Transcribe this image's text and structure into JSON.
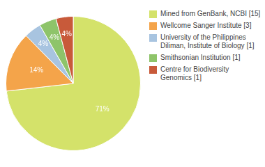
{
  "chart_data": {
    "type": "pie",
    "categories": [
      "Mined from GenBank, NCBI [15]",
      "Wellcome Sanger Institute [3]",
      "University of the Philippines\nDiliman, Institute of Biology [1]",
      "Smithsonian Institution [1]",
      "Centre for Biodiversity\nGenomics [1]"
    ],
    "values": [
      71,
      14,
      4,
      4,
      4
    ],
    "value_labels": [
      "71%",
      "14%",
      "4%",
      "4%",
      "4%"
    ],
    "colors": [
      "#d4e26a",
      "#f4a44a",
      "#a8c4e0",
      "#8ec46a",
      "#c85a3a"
    ],
    "data_labels": true,
    "legend": "right"
  }
}
